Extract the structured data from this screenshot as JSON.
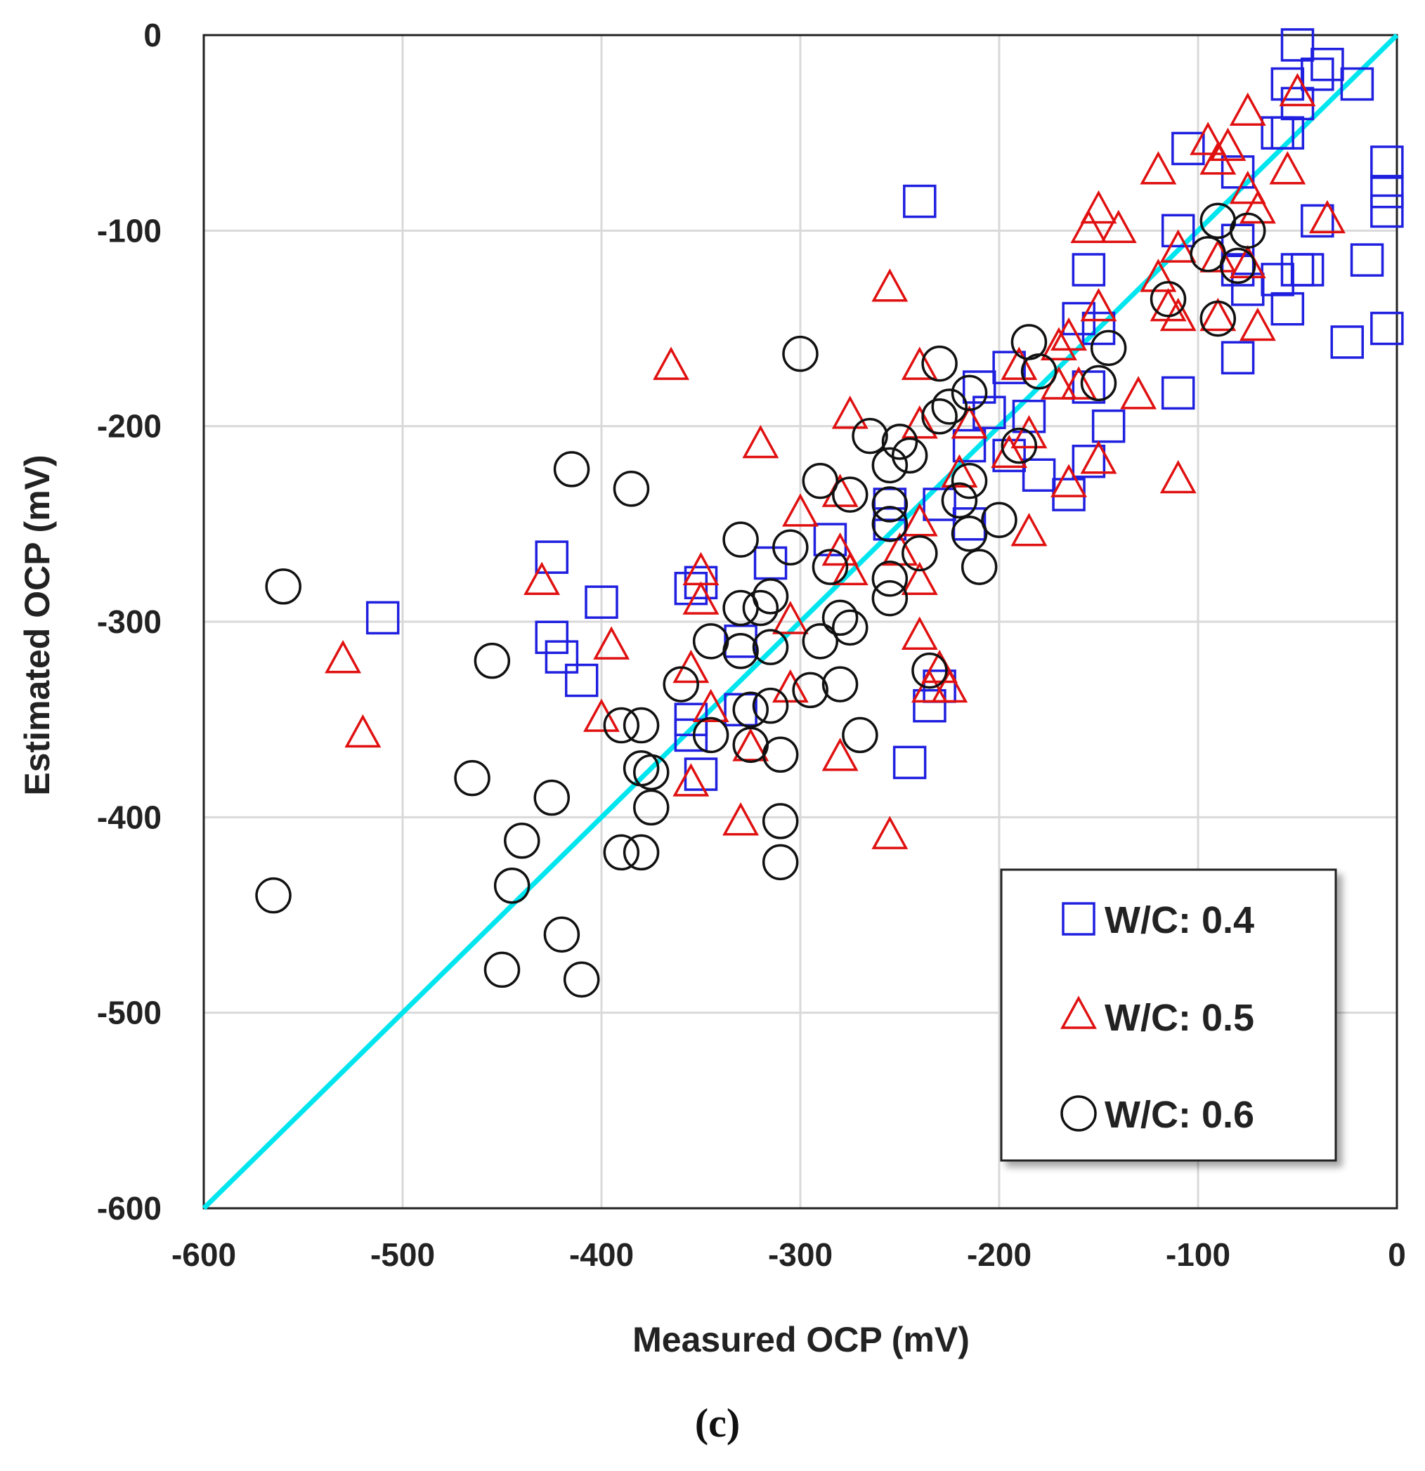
{
  "chart_data": {
    "type": "scatter",
    "xlabel": "Measured OCP (mV)",
    "ylabel": "Estimated OCP (mV)",
    "xlim": [
      -600,
      0
    ],
    "ylim": [
      -600,
      0
    ],
    "x_ticks": [
      "-600",
      "-500",
      "-400",
      "-300",
      "-200",
      "-100",
      "0"
    ],
    "y_ticks": [
      "0",
      "-100",
      "-200",
      "-300",
      "-400",
      "-500",
      "-600"
    ],
    "grid": true,
    "legend_position": "bottom-right",
    "panel_label": "(c)",
    "reference_line": {
      "x": [
        -600,
        0
      ],
      "y": [
        -600,
        0
      ],
      "color": "#00e5ee"
    },
    "series": [
      {
        "name": "W/C: 0.4",
        "marker": "square",
        "color": "#1f1fe0",
        "points": [
          [
            -50,
            -5
          ],
          [
            -35,
            -15
          ],
          [
            -40,
            -20
          ],
          [
            -55,
            -25
          ],
          [
            -20,
            -25
          ],
          [
            -50,
            -35
          ],
          [
            -55,
            -50
          ],
          [
            -60,
            -50
          ],
          [
            -105,
            -58
          ],
          [
            -80,
            -70
          ],
          [
            -5,
            -65
          ],
          [
            -5,
            -80
          ],
          [
            -5,
            -90
          ],
          [
            -240,
            -85
          ],
          [
            -40,
            -95
          ],
          [
            -110,
            -100
          ],
          [
            -80,
            -105
          ],
          [
            -80,
            -120
          ],
          [
            -155,
            -120
          ],
          [
            -50,
            -120
          ],
          [
            -45,
            -120
          ],
          [
            -15,
            -115
          ],
          [
            -75,
            -130
          ],
          [
            -60,
            -125
          ],
          [
            -55,
            -140
          ],
          [
            -160,
            -145
          ],
          [
            -150,
            -150
          ],
          [
            -5,
            -150
          ],
          [
            -25,
            -157
          ],
          [
            -80,
            -165
          ],
          [
            -195,
            -170
          ],
          [
            -210,
            -180
          ],
          [
            -110,
            -183
          ],
          [
            -155,
            -180
          ],
          [
            -185,
            -195
          ],
          [
            -205,
            -193
          ],
          [
            -145,
            -200
          ],
          [
            -215,
            -210
          ],
          [
            -195,
            -215
          ],
          [
            -180,
            -225
          ],
          [
            -155,
            -218
          ],
          [
            -165,
            -235
          ],
          [
            -230,
            -240
          ],
          [
            -255,
            -240
          ],
          [
            -255,
            -250
          ],
          [
            -215,
            -250
          ],
          [
            -285,
            -258
          ],
          [
            -425,
            -267
          ],
          [
            -315,
            -270
          ],
          [
            -350,
            -280
          ],
          [
            -355,
            -283
          ],
          [
            -400,
            -290
          ],
          [
            -510,
            -298
          ],
          [
            -425,
            -308
          ],
          [
            -420,
            -318
          ],
          [
            -410,
            -330
          ],
          [
            -330,
            -310
          ],
          [
            -230,
            -333
          ],
          [
            -235,
            -343
          ],
          [
            -330,
            -345
          ],
          [
            -355,
            -350
          ],
          [
            -355,
            -358
          ],
          [
            -350,
            -378
          ],
          [
            -245,
            -372
          ]
        ]
      },
      {
        "name": "W/C: 0.5",
        "marker": "triangle",
        "color": "#e01010",
        "points": [
          [
            -50,
            -30
          ],
          [
            -75,
            -40
          ],
          [
            -95,
            -55
          ],
          [
            -85,
            -58
          ],
          [
            -90,
            -65
          ],
          [
            -120,
            -70
          ],
          [
            -55,
            -70
          ],
          [
            -75,
            -80
          ],
          [
            -70,
            -90
          ],
          [
            -150,
            -90
          ],
          [
            -155,
            -100
          ],
          [
            -140,
            -100
          ],
          [
            -35,
            -95
          ],
          [
            -110,
            -110
          ],
          [
            -90,
            -115
          ],
          [
            -75,
            -118
          ],
          [
            -255,
            -130
          ],
          [
            -120,
            -125
          ],
          [
            -150,
            -140
          ],
          [
            -115,
            -140
          ],
          [
            -110,
            -145
          ],
          [
            -90,
            -145
          ],
          [
            -70,
            -150
          ],
          [
            -165,
            -155
          ],
          [
            -170,
            -160
          ],
          [
            -365,
            -170
          ],
          [
            -240,
            -170
          ],
          [
            -190,
            -170
          ],
          [
            -170,
            -180
          ],
          [
            -160,
            -180
          ],
          [
            -130,
            -185
          ],
          [
            -275,
            -195
          ],
          [
            -240,
            -200
          ],
          [
            -215,
            -200
          ],
          [
            -185,
            -205
          ],
          [
            -320,
            -210
          ],
          [
            -195,
            -215
          ],
          [
            -150,
            -218
          ],
          [
            -110,
            -228
          ],
          [
            -165,
            -230
          ],
          [
            -220,
            -225
          ],
          [
            -280,
            -235
          ],
          [
            -300,
            -245
          ],
          [
            -240,
            -250
          ],
          [
            -185,
            -255
          ],
          [
            -280,
            -265
          ],
          [
            -250,
            -265
          ],
          [
            -350,
            -275
          ],
          [
            -430,
            -280
          ],
          [
            -240,
            -280
          ],
          [
            -275,
            -275
          ],
          [
            -350,
            -290
          ],
          [
            -395,
            -313
          ],
          [
            -305,
            -300
          ],
          [
            -240,
            -308
          ],
          [
            -530,
            -320
          ],
          [
            -355,
            -325
          ],
          [
            -230,
            -325
          ],
          [
            -235,
            -335
          ],
          [
            -305,
            -335
          ],
          [
            -225,
            -335
          ],
          [
            -345,
            -345
          ],
          [
            -400,
            -350
          ],
          [
            -325,
            -365
          ],
          [
            -520,
            -358
          ],
          [
            -280,
            -370
          ],
          [
            -355,
            -383
          ],
          [
            -330,
            -403
          ],
          [
            -255,
            -410
          ]
        ]
      },
      {
        "name": "W/C: 0.6",
        "marker": "circle",
        "color": "#111111",
        "points": [
          [
            -90,
            -95
          ],
          [
            -75,
            -100
          ],
          [
            -95,
            -112
          ],
          [
            -80,
            -118
          ],
          [
            -115,
            -135
          ],
          [
            -90,
            -145
          ],
          [
            -300,
            -163
          ],
          [
            -185,
            -157
          ],
          [
            -145,
            -160
          ],
          [
            -230,
            -168
          ],
          [
            -180,
            -172
          ],
          [
            -150,
            -178
          ],
          [
            -215,
            -183
          ],
          [
            -225,
            -190
          ],
          [
            -230,
            -195
          ],
          [
            -265,
            -205
          ],
          [
            -250,
            -208
          ],
          [
            -245,
            -215
          ],
          [
            -190,
            -210
          ],
          [
            -255,
            -220
          ],
          [
            -415,
            -222
          ],
          [
            -290,
            -228
          ],
          [
            -215,
            -228
          ],
          [
            -385,
            -232
          ],
          [
            -275,
            -235
          ],
          [
            -255,
            -240
          ],
          [
            -220,
            -238
          ],
          [
            -255,
            -250
          ],
          [
            -200,
            -248
          ],
          [
            -215,
            -255
          ],
          [
            -330,
            -258
          ],
          [
            -305,
            -262
          ],
          [
            -240,
            -265
          ],
          [
            -285,
            -272
          ],
          [
            -210,
            -272
          ],
          [
            -255,
            -278
          ],
          [
            -560,
            -282
          ],
          [
            -315,
            -287
          ],
          [
            -255,
            -288
          ],
          [
            -330,
            -293
          ],
          [
            -320,
            -293
          ],
          [
            -280,
            -298
          ],
          [
            -345,
            -310
          ],
          [
            -290,
            -310
          ],
          [
            -275,
            -303
          ],
          [
            -315,
            -313
          ],
          [
            -330,
            -315
          ],
          [
            -455,
            -320
          ],
          [
            -235,
            -325
          ],
          [
            -360,
            -332
          ],
          [
            -295,
            -335
          ],
          [
            -280,
            -332
          ],
          [
            -315,
            -343
          ],
          [
            -325,
            -345
          ],
          [
            -390,
            -353
          ],
          [
            -380,
            -353
          ],
          [
            -345,
            -358
          ],
          [
            -270,
            -358
          ],
          [
            -325,
            -363
          ],
          [
            -310,
            -368
          ],
          [
            -380,
            -375
          ],
          [
            -375,
            -377
          ],
          [
            -465,
            -380
          ],
          [
            -425,
            -390
          ],
          [
            -375,
            -395
          ],
          [
            -310,
            -402
          ],
          [
            -440,
            -412
          ],
          [
            -390,
            -418
          ],
          [
            -380,
            -418
          ],
          [
            -310,
            -423
          ],
          [
            -445,
            -435
          ],
          [
            -565,
            -440
          ],
          [
            -420,
            -460
          ],
          [
            -450,
            -478
          ],
          [
            -410,
            -483
          ]
        ]
      }
    ]
  }
}
